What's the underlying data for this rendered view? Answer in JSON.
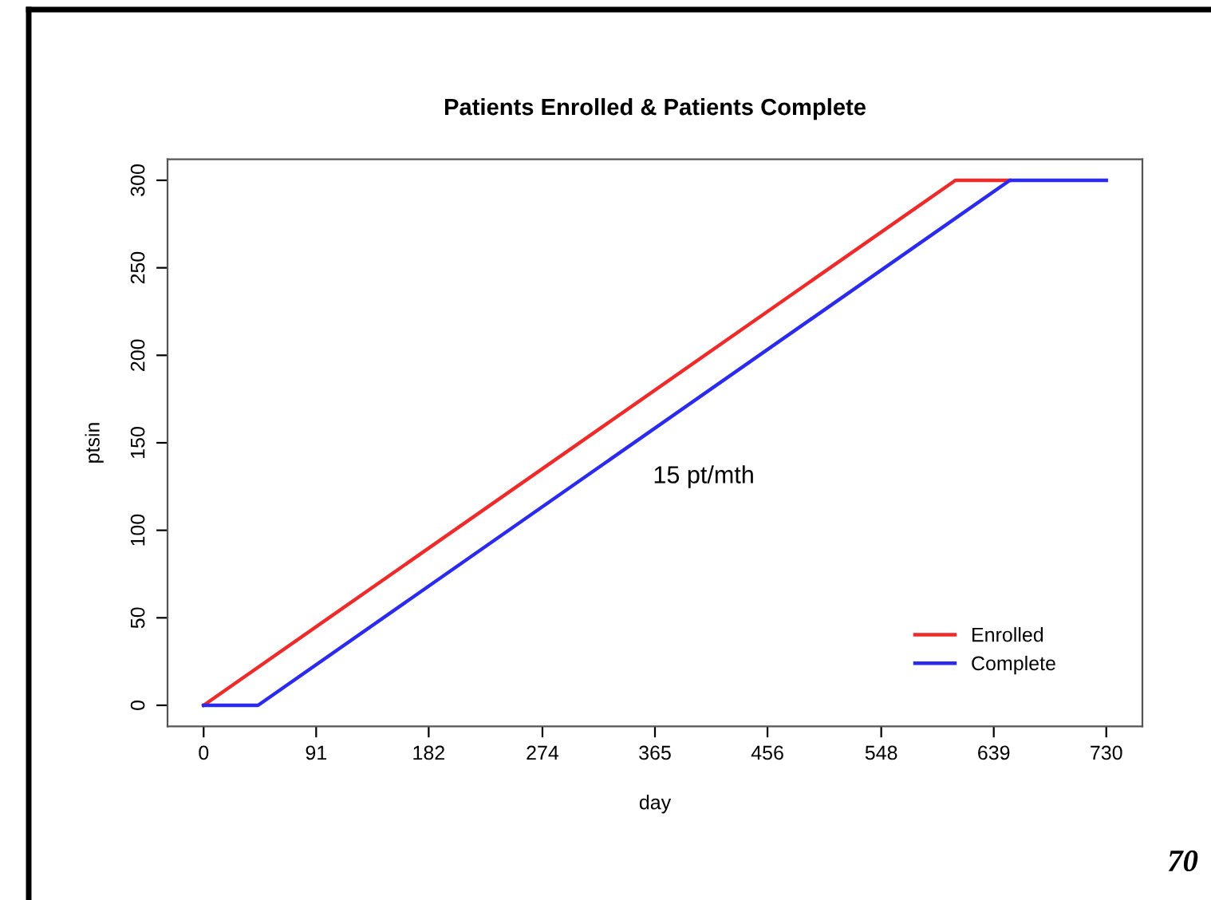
{
  "chart_data": {
    "type": "line",
    "title": "Patients Enrolled & Patients Complete",
    "xlabel": "day",
    "ylabel": "ptsin",
    "series": [
      {
        "name": "Enrolled",
        "color": "#ee2b2b",
        "x": [
          0,
          608,
          652
        ],
        "values": [
          0,
          300,
          300
        ]
      },
      {
        "name": "Complete",
        "color": "#2b2bee",
        "x": [
          0,
          44,
          652,
          730
        ],
        "values": [
          0,
          0,
          300,
          300
        ]
      }
    ],
    "xlim": [
      -29.2,
      759.2
    ],
    "xticks": [
      0,
      91,
      182,
      274,
      365,
      456,
      548,
      639,
      730
    ],
    "ylim": [
      -12,
      312
    ],
    "yticks": [
      0,
      50,
      100,
      150,
      200,
      250,
      300
    ],
    "annotations": [
      "15 pt/mth",
      "70"
    ],
    "legend": "bottom right",
    "grid": false,
    "marker": "none",
    "line_style": "solid"
  }
}
